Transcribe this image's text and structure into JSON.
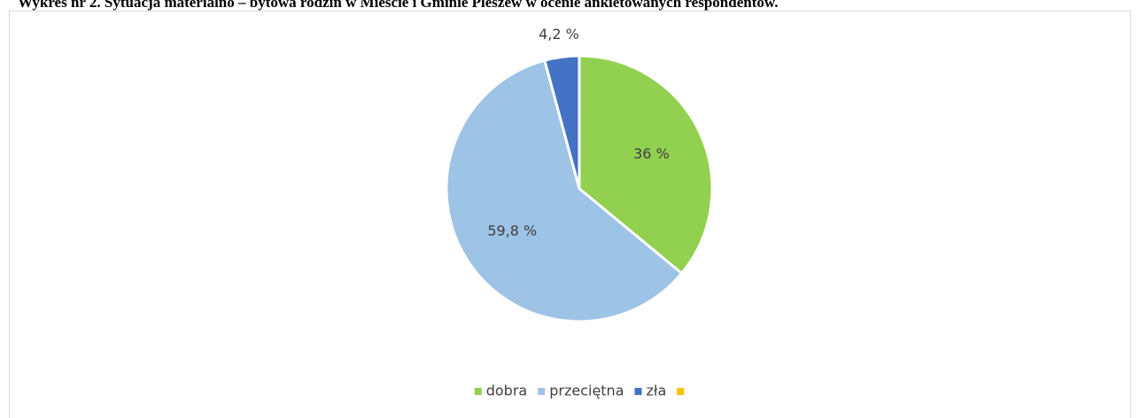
{
  "chart_data": {
    "type": "pie",
    "title": "Wykres nr 2. Sytuacja materialno – bytowa rodzin w Mieście i Gminie Pleszew w ocenie ankietowanych respondentów.",
    "categories": [
      "dobra",
      "przeciętna",
      "zła",
      null
    ],
    "values": [
      36,
      59.8,
      4.2,
      0
    ],
    "value_labels": [
      "36 %",
      "59,8 %",
      "4,2 %",
      null
    ],
    "colors": [
      "#92d050",
      "#9dc3e6",
      "#4472c4",
      "#ffc000"
    ],
    "legend": "bottom"
  }
}
